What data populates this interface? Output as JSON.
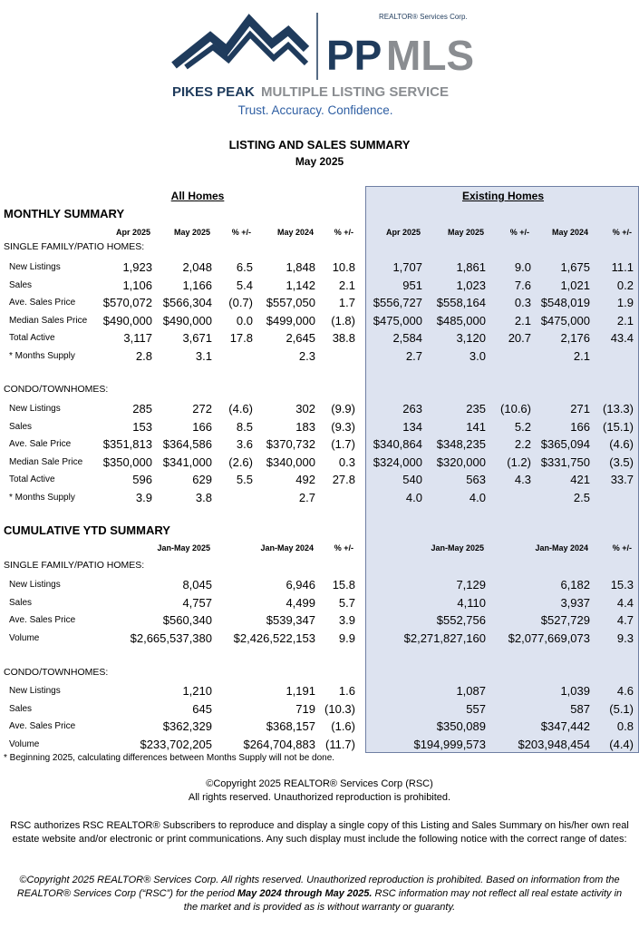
{
  "header": {
    "brand_primary": "PP",
    "brand_secondary": "MLS",
    "corp": "REALTOR® Services Corp.",
    "service_primary": "PIKES PEAK",
    "service_secondary": "MULTIPLE LISTING SERVICE",
    "tagline": "Trust. Accuracy. Confidence."
  },
  "title": "LISTING AND SALES SUMMARY",
  "subtitle": "May 2025",
  "groups": [
    "All Homes",
    "Existing Homes"
  ],
  "monthly": {
    "heading": "MONTHLY SUMMARY",
    "columns": [
      "Apr 2025",
      "May 2025",
      "% +/-",
      "May 2024",
      "% +/-"
    ],
    "sections": [
      {
        "label": "SINGLE FAMILY/PATIO HOMES:",
        "rows": [
          {
            "label": "New Listings",
            "all": [
              "1,923",
              "2,048",
              "6.5",
              "1,848",
              "10.8"
            ],
            "existing": [
              "1,707",
              "1,861",
              "9.0",
              "1,675",
              "11.1"
            ]
          },
          {
            "label": "Sales",
            "all": [
              "1,106",
              "1,166",
              "5.4",
              "1,142",
              "2.1"
            ],
            "existing": [
              "951",
              "1,023",
              "7.6",
              "1,021",
              "0.2"
            ]
          },
          {
            "label": "Ave. Sales Price",
            "all": [
              "$570,072",
              "$566,304",
              "(0.7)",
              "$557,050",
              "1.7"
            ],
            "existing": [
              "$556,727",
              "$558,164",
              "0.3",
              "$548,019",
              "1.9"
            ]
          },
          {
            "label": "Median Sales Price",
            "all": [
              "$490,000",
              "$490,000",
              "0.0",
              "$499,000",
              "(1.8)"
            ],
            "existing": [
              "$475,000",
              "$485,000",
              "2.1",
              "$475,000",
              "2.1"
            ]
          },
          {
            "label": "Total Active",
            "all": [
              "3,117",
              "3,671",
              "17.8",
              "2,645",
              "38.8"
            ],
            "existing": [
              "2,584",
              "3,120",
              "20.7",
              "2,176",
              "43.4"
            ]
          },
          {
            "label": "* Months Supply",
            "all": [
              "2.8",
              "3.1",
              null,
              "2.3",
              null
            ],
            "existing": [
              "2.7",
              "3.0",
              null,
              "2.1",
              null
            ]
          }
        ]
      },
      {
        "label": "CONDO/TOWNHOMES:",
        "rows": [
          {
            "label": "New Listings",
            "all": [
              "285",
              "272",
              "(4.6)",
              "302",
              "(9.9)"
            ],
            "existing": [
              "263",
              "235",
              "(10.6)",
              "271",
              "(13.3)"
            ]
          },
          {
            "label": "Sales",
            "all": [
              "153",
              "166",
              "8.5",
              "183",
              "(9.3)"
            ],
            "existing": [
              "134",
              "141",
              "5.2",
              "166",
              "(15.1)"
            ]
          },
          {
            "label": "Ave. Sale Price",
            "all": [
              "$351,813",
              "$364,586",
              "3.6",
              "$370,732",
              "(1.7)"
            ],
            "existing": [
              "$340,864",
              "$348,235",
              "2.2",
              "$365,094",
              "(4.6)"
            ]
          },
          {
            "label": "Median Sale Price",
            "all": [
              "$350,000",
              "$341,000",
              "(2.6)",
              "$340,000",
              "0.3"
            ],
            "existing": [
              "$324,000",
              "$320,000",
              "(1.2)",
              "$331,750",
              "(3.5)"
            ]
          },
          {
            "label": "Total Active",
            "all": [
              "596",
              "629",
              "5.5",
              "492",
              "27.8"
            ],
            "existing": [
              "540",
              "563",
              "4.3",
              "421",
              "33.7"
            ]
          },
          {
            "label": "* Months Supply",
            "all": [
              "3.9",
              "3.8",
              null,
              "2.7",
              null
            ],
            "existing": [
              "4.0",
              "4.0",
              null,
              "2.5",
              null
            ]
          }
        ]
      }
    ]
  },
  "ytd": {
    "heading": "CUMULATIVE YTD SUMMARY",
    "columns": [
      "Jan-May 2025",
      "Jan-May 2024",
      "% +/-"
    ],
    "sections": [
      {
        "label": "SINGLE FAMILY/PATIO HOMES:",
        "rows": [
          {
            "label": "New Listings",
            "all": [
              "8,045",
              "6,946",
              "15.8"
            ],
            "existing": [
              "7,129",
              "6,182",
              "15.3"
            ]
          },
          {
            "label": "Sales",
            "all": [
              "4,757",
              "4,499",
              "5.7"
            ],
            "existing": [
              "4,110",
              "3,937",
              "4.4"
            ]
          },
          {
            "label": "Ave. Sales Price",
            "all": [
              "$560,340",
              "$539,347",
              "3.9"
            ],
            "existing": [
              "$552,756",
              "$527,729",
              "4.7"
            ]
          },
          {
            "label": "Volume",
            "all": [
              "$2,665,537,380",
              "$2,426,522,153",
              "9.9"
            ],
            "existing": [
              "$2,271,827,160",
              "$2,077,669,073",
              "9.3"
            ]
          }
        ]
      },
      {
        "label": "CONDO/TOWNHOMES:",
        "rows": [
          {
            "label": "New Listings",
            "all": [
              "1,210",
              "1,191",
              "1.6"
            ],
            "existing": [
              "1,087",
              "1,039",
              "4.6"
            ]
          },
          {
            "label": "Sales",
            "all": [
              "645",
              "719",
              "(10.3)"
            ],
            "existing": [
              "557",
              "587",
              "(5.1)"
            ]
          },
          {
            "label": "Ave. Sales Price",
            "all": [
              "$362,329",
              "$368,157",
              "(1.6)"
            ],
            "existing": [
              "$350,089",
              "$347,442",
              "0.8"
            ]
          },
          {
            "label": "Volume",
            "all": [
              "$233,702,205",
              "$264,704,883",
              "(11.7)"
            ],
            "existing": [
              "$194,999,573",
              "$203,948,454",
              "(4.4)"
            ]
          }
        ]
      }
    ]
  },
  "footnote": "* Beginning 2025, calculating differences between Months Supply will not be done.",
  "copyright": [
    "©Copyright 2025  REALTOR® Services Corp (RSC)",
    "All rights reserved.  Unauthorized reproduction is prohibited."
  ],
  "permission": "RSC authorizes RSC REALTOR® Subscribers to reproduce and display a single copy of this Listing and Sales Summary on his/her own real estate website and/or electronic or print communications.  Any such display must include the following notice with the correct range of dates:",
  "notice": [
    "©Copyright 2025  REALTOR® Services Corp.  All rights reserved.  Unauthorized reproduction is prohibited.  Based on information from the REALTOR® Services Corp (“RSC”) for the period ",
    "May 2024 through May 2025.",
    "  RSC information may not reflect all real estate activity in the market and is provided as is without warranty or guaranty."
  ]
}
